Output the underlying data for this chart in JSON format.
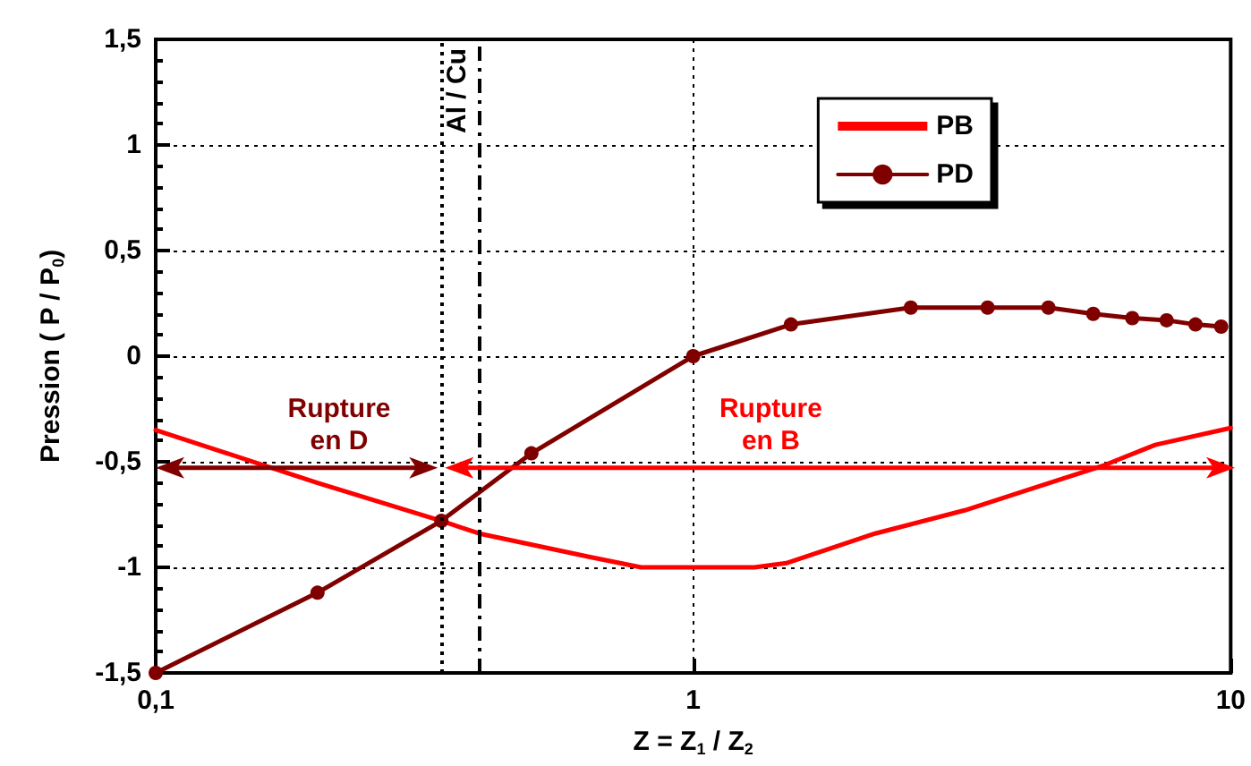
{
  "chart_data": {
    "type": "line",
    "xlabel": "Z = Z$_{1}$ / Z$_{2}$",
    "ylabel": "Pression ( P / P$_{0}$)",
    "log": "x",
    "xlim": [
      0.1,
      10
    ],
    "xticks": [
      {
        "value": 0.1,
        "label": "0,1"
      },
      1,
      10
    ],
    "ylim": [
      -1.5,
      1.5
    ],
    "yticks": [
      {
        "value": -1.5,
        "label": "-1,5"
      },
      -1,
      {
        "value": -0.5,
        "label": "-0,5"
      },
      0,
      {
        "value": 0.5,
        "label": "0,5"
      },
      1,
      {
        "value": 1.5,
        "label": "1,5"
      }
    ],
    "grid": true,
    "legend": "top right",
    "marker": "circle",
    "line_style": "solid",
    "series": [
      {
        "name": "PB",
        "color": "#ff0000",
        "marker": "none",
        "x": [
          0.1,
          0.2,
          0.34,
          0.4,
          0.64,
          0.8,
          1.3,
          1.49,
          2.18,
          3.2,
          4.35,
          5.77,
          7.24,
          10
        ],
        "values": [
          -0.35,
          -0.6,
          -0.78,
          -0.84,
          -0.95,
          -1,
          -1,
          -0.98,
          -0.84,
          -0.73,
          -0.62,
          -0.52,
          -0.42,
          -0.34
        ]
      },
      {
        "name": "PD",
        "color": "#800000",
        "x": [
          0.1,
          0.2,
          0.34,
          0.5,
          1,
          1.52,
          2.54,
          3.53,
          4.58,
          5.55,
          6.56,
          7.6,
          8.6,
          9.6
        ],
        "values": [
          -1.5,
          -1.12,
          -0.78,
          -0.46,
          0,
          0.15,
          0.23,
          0.23,
          0.23,
          0.2,
          0.18,
          0.17,
          0.15,
          0.14
        ]
      }
    ],
    "ref_lines": [
      {
        "axis": "x",
        "value": 0.4,
        "label": "Al / Cu",
        "color": "#000000",
        "line_style": "dashed"
      },
      {
        "axis": "x",
        "value": 0.34,
        "color": "#000000",
        "line_style": "dotted"
      }
    ],
    "annotations": [
      "Rupture\nen D",
      "Rupture\nen B"
    ]
  }
}
